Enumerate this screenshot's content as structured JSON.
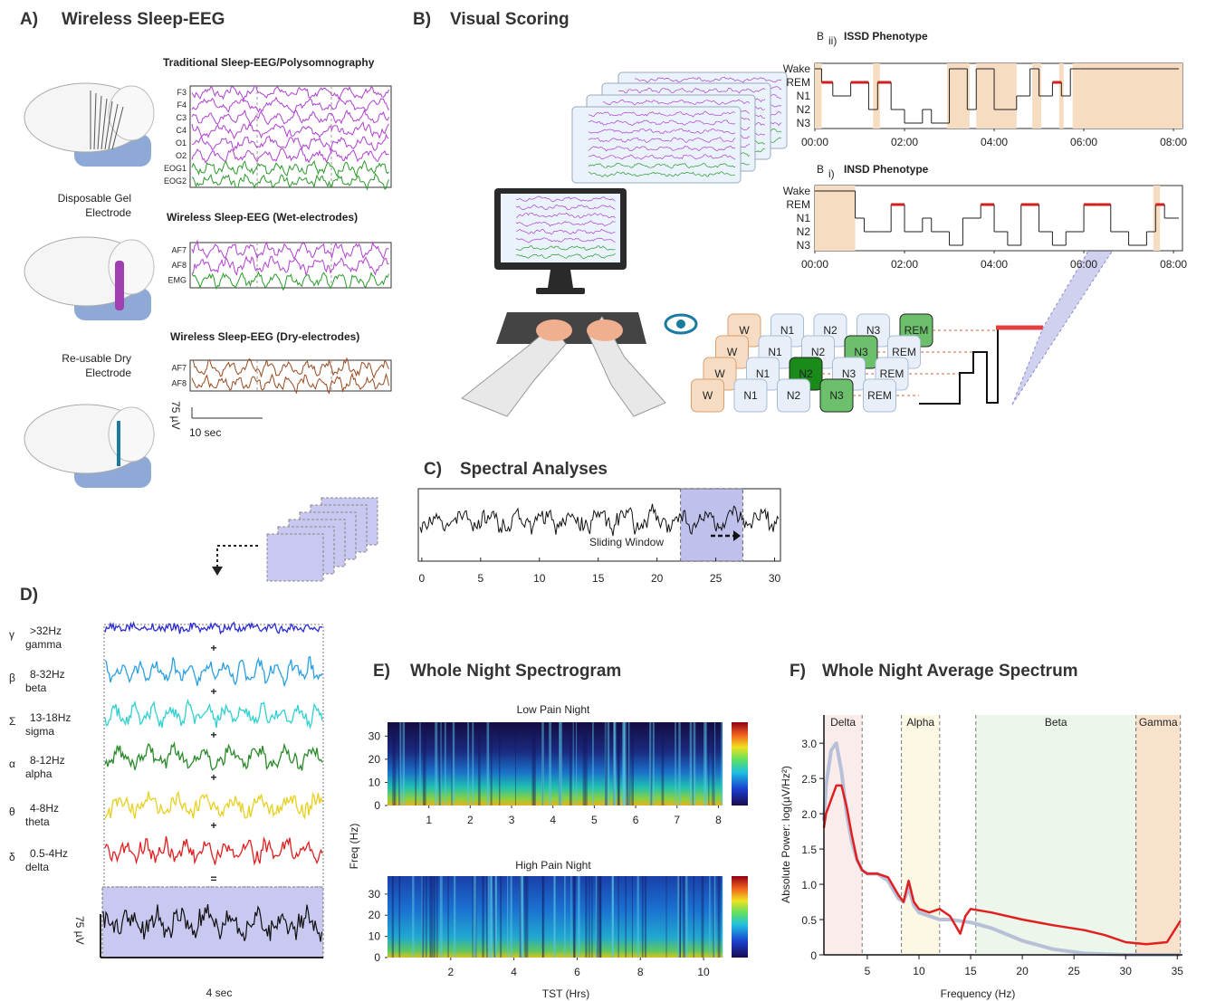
{
  "panel_a": {
    "label": "A)",
    "title": "Wireless Sleep-EEG",
    "recordings": [
      {
        "title": "Traditional Sleep-EEG/Polysomnography",
        "channels": [
          "F3",
          "F4",
          "C3",
          "C4",
          "O1",
          "O2",
          "EOG1",
          "EOG2"
        ]
      },
      {
        "title": "Wireless Sleep-EEG (Wet-electrodes)",
        "channels": [
          "AF7",
          "AF8",
          "EMG"
        ]
      },
      {
        "title": "Wireless Sleep-EEG (Dry-electrodes)",
        "channels": [
          "AF7",
          "AF8"
        ]
      }
    ],
    "electrodes": [
      {
        "lines": [
          "Disposable Gel",
          "Electrode"
        ]
      },
      {
        "lines": [
          "Re-usable Dry",
          "Electrode"
        ]
      }
    ],
    "scale_amplitude": "75 µV",
    "scale_time": "10 sec"
  },
  "panel_b": {
    "label": "B)",
    "title": "Visual Scoring",
    "score_rows": [
      [
        "W",
        "N1",
        "N2",
        "N3",
        "REM"
      ],
      [
        "W",
        "N1",
        "N2",
        "N3",
        "REM"
      ],
      [
        "W",
        "N1",
        "N2",
        "N3",
        "REM"
      ],
      [
        "W",
        "N1",
        "N2",
        "N3",
        "REM"
      ]
    ],
    "scored": [
      4,
      3,
      2,
      3
    ]
  },
  "hypnograms": [
    {
      "letter": "B",
      "subscript": "ii)",
      "title": "ISSD Phenotype",
      "yticks": [
        {
          "value": 4,
          "label": "Wake"
        },
        {
          "value": 3,
          "label": "REM"
        },
        {
          "value": 2,
          "label": "N1"
        },
        {
          "value": 1,
          "label": "N2"
        },
        {
          "value": 0,
          "label": "N3"
        }
      ],
      "xlim": [
        0,
        8.2
      ],
      "xticks": [
        {
          "value": 0,
          "label": "00:00"
        },
        {
          "value": 2,
          "label": "02:00"
        },
        {
          "value": 4,
          "label": "04:00"
        },
        {
          "value": 6,
          "label": "06:00"
        },
        {
          "value": 8,
          "label": "08:00"
        }
      ],
      "hours": [
        0,
        0.15,
        0.4,
        0.8,
        1.2,
        1.4,
        1.7,
        2.0,
        2.4,
        2.6,
        3.0,
        3.4,
        3.6,
        4.0,
        4.5,
        4.8,
        5.0,
        5.3,
        5.5,
        5.7,
        5.9,
        8.1
      ],
      "stages": [
        4,
        3,
        2,
        3,
        1,
        3,
        1,
        0,
        1,
        0,
        4,
        1,
        4,
        1,
        2,
        4,
        2,
        3,
        2,
        4,
        4,
        4
      ],
      "wake_periods": [
        [
          0,
          0.15
        ],
        [
          1.3,
          1.45
        ],
        [
          2.95,
          3.45
        ],
        [
          3.6,
          4.5
        ],
        [
          4.85,
          5.05
        ],
        [
          5.45,
          5.55
        ],
        [
          5.75,
          8.2
        ]
      ]
    },
    {
      "letter": "B",
      "subscript": "i)",
      "title": "INSD Phenotype",
      "yticks": [
        {
          "value": 4,
          "label": "Wake"
        },
        {
          "value": 3,
          "label": "REM"
        },
        {
          "value": 2,
          "label": "N1"
        },
        {
          "value": 1,
          "label": "N2"
        },
        {
          "value": 0,
          "label": "N3"
        }
      ],
      "xlim": [
        0,
        8.2
      ],
      "xticks": [
        {
          "value": 0,
          "label": "00:00"
        },
        {
          "value": 2,
          "label": "02:00"
        },
        {
          "value": 4,
          "label": "04:00"
        },
        {
          "value": 6,
          "label": "06:00"
        },
        {
          "value": 8,
          "label": "08:00"
        }
      ],
      "hours": [
        0,
        0.9,
        1.1,
        1.4,
        1.7,
        2.0,
        2.4,
        2.6,
        3.0,
        3.3,
        3.7,
        4.0,
        4.3,
        4.6,
        5.0,
        5.3,
        5.6,
        6.0,
        6.3,
        6.6,
        7.0,
        7.4,
        7.6,
        7.8,
        8.1
      ],
      "stages": [
        4,
        2,
        1,
        1,
        3,
        1,
        2,
        1,
        0,
        2,
        3,
        1,
        0,
        3,
        1,
        0,
        1,
        3,
        3,
        1,
        0,
        1,
        3,
        2,
        2
      ],
      "wake_periods": [
        [
          0,
          0.9
        ],
        [
          7.55,
          7.7
        ]
      ]
    }
  ],
  "panel_c": {
    "label": "C)",
    "title": "Spectral Analyses",
    "window_label": "Sliding Window",
    "xlim": [
      -0.3,
      30.5
    ],
    "xticks": [
      0,
      5,
      10,
      15,
      20,
      25,
      30
    ],
    "window": [
      22,
      27.3
    ]
  },
  "panel_d": {
    "label": "D)",
    "bands": [
      {
        "symbol": "γ",
        "range": ">32Hz",
        "name": "gamma",
        "color": "#2b2bd0"
      },
      {
        "symbol": "β",
        "range": "8-32Hz",
        "name": "beta",
        "color": "#2aa0e0"
      },
      {
        "symbol": "Σ",
        "range": "13-18Hz",
        "name": "sigma",
        "color": "#30d0d0"
      },
      {
        "symbol": "α",
        "range": "8-12Hz",
        "name": "alpha",
        "color": "#2a8a2a"
      },
      {
        "symbol": "θ",
        "range": "4-8Hz",
        "name": "theta",
        "color": "#e8d020"
      },
      {
        "symbol": "δ",
        "range": "0.5-4Hz",
        "name": "delta",
        "color": "#e02020"
      }
    ],
    "plus": "+",
    "equals": "=",
    "scale_amplitude": "75 µV",
    "scale_time": "4 sec"
  },
  "panel_e": {
    "label": "E)",
    "title": "Whole Night Spectrogram",
    "ylabel": "Freq (Hz)",
    "xlabel": "TST (Hrs)",
    "plots": [
      {
        "title": "Low Pain Night",
        "xlim": [
          0,
          8.1
        ],
        "ylim": [
          0,
          36
        ],
        "xticks": [
          1,
          2,
          3,
          4,
          5,
          6,
          7,
          8
        ],
        "yticks": [
          0,
          10,
          20,
          30
        ]
      },
      {
        "title": "High Pain Night",
        "xlim": [
          0,
          10.6
        ],
        "ylim": [
          0,
          38.5
        ],
        "xticks": [
          2,
          4,
          6,
          8,
          10
        ],
        "yticks": [
          0,
          10,
          20,
          30
        ]
      }
    ]
  },
  "panel_f": {
    "label": "F)",
    "chart_data": {
      "type": "line",
      "title": "Whole Night Average Spectrum",
      "xlabel": "Frequency (Hz)",
      "ylabel": "Absolute Power: log(µV/Hz²)",
      "x": [
        0.8,
        1,
        1.5,
        2,
        2.5,
        3,
        3.5,
        4,
        4.5,
        5,
        6,
        7,
        8,
        8.5,
        9,
        9.5,
        10,
        11,
        12,
        13,
        14,
        14.5,
        15,
        17,
        20,
        23,
        26,
        28,
        30,
        32,
        34,
        35.3
      ],
      "series": [
        {
          "color": "#b8c0d8",
          "values": [
            1.9,
            2.4,
            2.9,
            3.0,
            2.6,
            2.0,
            1.6,
            1.35,
            1.2,
            1.15,
            1.15,
            1.05,
            0.8,
            0.75,
            0.95,
            0.7,
            0.6,
            0.55,
            0.5,
            0.5,
            0.48,
            0.47,
            0.46,
            0.38,
            0.2,
            0.08,
            0.02,
            0.01,
            0,
            0,
            0,
            0
          ]
        },
        {
          "color": "#e02020",
          "values": [
            1.8,
            2.0,
            2.2,
            2.4,
            2.4,
            2.1,
            1.7,
            1.35,
            1.2,
            1.15,
            1.15,
            1.1,
            0.85,
            0.75,
            1.05,
            0.75,
            0.65,
            0.6,
            0.65,
            0.55,
            0.3,
            0.55,
            0.65,
            0.6,
            0.5,
            0.42,
            0.35,
            0.28,
            0.18,
            0.15,
            0.18,
            0.48
          ]
        }
      ],
      "xlim": [
        0.8,
        35.5
      ],
      "ylim": [
        0,
        3.4
      ],
      "xticks": [
        5,
        10,
        15,
        20,
        25,
        30,
        35
      ],
      "yticks": [
        0,
        0.5,
        {
          "value": 1,
          "label": "1.0"
        },
        1.5,
        {
          "value": 2,
          "label": "2.0"
        },
        2.5,
        {
          "value": 3,
          "label": "3.0"
        }
      ],
      "bands": [
        {
          "name": "Delta",
          "range": [
            0.8,
            4.5
          ],
          "color": "#fbecec"
        },
        {
          "name": "Alpha",
          "range": [
            8.3,
            12
          ],
          "color": "#fdf8e4"
        },
        {
          "name": "Beta",
          "range": [
            15.5,
            31
          ],
          "color": "#edf6ea"
        },
        {
          "name": "Gamma",
          "range": [
            31,
            35.3
          ],
          "color": "#f8e2cc"
        }
      ]
    }
  }
}
